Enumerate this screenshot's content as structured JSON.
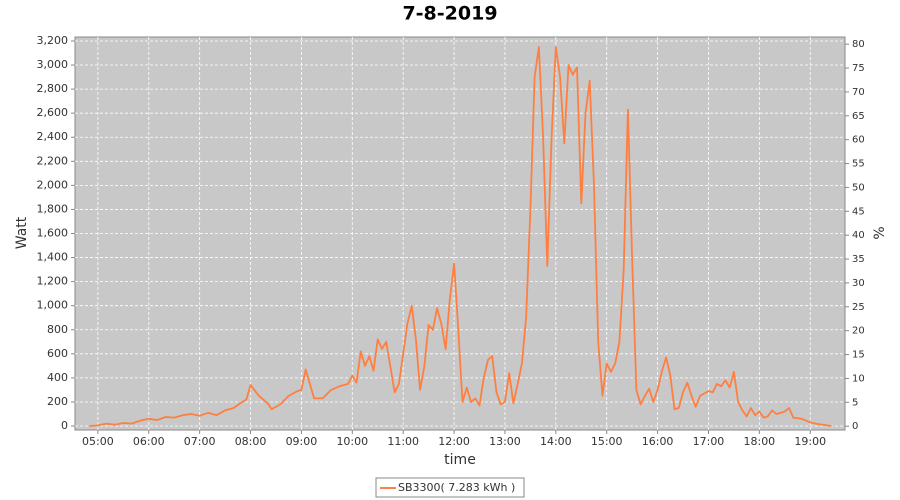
{
  "chart_data": {
    "type": "line",
    "title": "7-8-2019",
    "xlabel": "time",
    "ylabel": "Watt",
    "y2label": "%",
    "x": [
      "04:50",
      "05:00",
      "05:10",
      "05:20",
      "05:30",
      "05:40",
      "05:50",
      "06:00",
      "06:10",
      "06:20",
      "06:30",
      "06:40",
      "06:50",
      "07:00",
      "07:10",
      "07:20",
      "07:30",
      "07:40",
      "07:50",
      "07:55",
      "08:00",
      "08:10",
      "08:20",
      "08:25",
      "08:35",
      "08:45",
      "08:55",
      "09:00",
      "09:05",
      "09:15",
      "09:25",
      "09:35",
      "09:45",
      "09:55",
      "10:00",
      "10:05",
      "10:10",
      "10:15",
      "10:20",
      "10:25",
      "10:30",
      "10:35",
      "10:40",
      "10:50",
      "10:55",
      "11:05",
      "11:10",
      "11:15",
      "11:20",
      "11:25",
      "11:30",
      "11:35",
      "11:40",
      "11:45",
      "11:50",
      "11:55",
      "12:00",
      "12:05",
      "12:10",
      "12:15",
      "12:20",
      "12:25",
      "12:30",
      "12:35",
      "12:40",
      "12:45",
      "12:50",
      "12:55",
      "13:00",
      "13:05",
      "13:10",
      "13:15",
      "13:20",
      "13:25",
      "13:30",
      "13:35",
      "13:40",
      "13:45",
      "13:50",
      "13:55",
      "14:00",
      "14:05",
      "14:10",
      "14:15",
      "14:20",
      "14:25",
      "14:30",
      "14:35",
      "14:40",
      "14:45",
      "14:50",
      "14:55",
      "15:00",
      "15:05",
      "15:10",
      "15:15",
      "15:20",
      "15:25",
      "15:30",
      "15:35",
      "15:40",
      "15:45",
      "15:50",
      "15:55",
      "16:00",
      "16:05",
      "16:10",
      "16:15",
      "16:20",
      "16:25",
      "16:30",
      "16:35",
      "16:40",
      "16:45",
      "16:50",
      "16:55",
      "17:00",
      "17:05",
      "17:10",
      "17:15",
      "17:20",
      "17:25",
      "17:30",
      "17:35",
      "17:40",
      "17:45",
      "17:50",
      "17:55",
      "18:00",
      "18:05",
      "18:10",
      "18:15",
      "18:20",
      "18:30",
      "18:35",
      "18:40",
      "18:50",
      "19:00",
      "19:10",
      "19:20",
      "19:25"
    ],
    "series": [
      {
        "name": "SB3300( 7.283 kWh )",
        "color": "#ff7f40",
        "values": [
          0,
          5,
          20,
          10,
          25,
          20,
          45,
          60,
          50,
          75,
          70,
          90,
          100,
          85,
          110,
          90,
          130,
          150,
          200,
          220,
          340,
          250,
          190,
          140,
          180,
          250,
          290,
          300,
          470,
          230,
          230,
          300,
          330,
          350,
          420,
          360,
          620,
          500,
          580,
          460,
          720,
          640,
          700,
          280,
          350,
          850,
          1000,
          720,
          300,
          500,
          840,
          800,
          980,
          850,
          640,
          1050,
          1350,
          800,
          200,
          320,
          200,
          230,
          170,
          400,
          550,
          580,
          280,
          180,
          200,
          440,
          190,
          350,
          520,
          900,
          1800,
          2900,
          3150,
          2400,
          1330,
          2400,
          3150,
          2900,
          2350,
          3000,
          2920,
          2980,
          1850,
          2600,
          2870,
          2000,
          700,
          250,
          520,
          450,
          520,
          700,
          1300,
          2630,
          1400,
          300,
          180,
          250,
          310,
          200,
          300,
          450,
          570,
          420,
          140,
          150,
          280,
          360,
          250,
          160,
          250,
          270,
          290,
          280,
          350,
          330,
          380,
          320,
          450,
          200,
          130,
          80,
          150,
          90,
          120,
          70,
          80,
          130,
          100,
          120,
          150,
          70,
          60,
          30,
          15,
          5,
          0
        ]
      }
    ],
    "xlim": [
      "04:33",
      "19:41"
    ],
    "xticks": [
      "05:00",
      "06:00",
      "07:00",
      "08:00",
      "09:00",
      "10:00",
      "11:00",
      "12:00",
      "13:00",
      "14:00",
      "15:00",
      "16:00",
      "17:00",
      "18:00",
      "19:00"
    ],
    "ylim": [
      -33,
      3233
    ],
    "yticks": [
      0,
      200,
      400,
      600,
      800,
      {
        "value": 1000,
        "label": "1,000"
      },
      {
        "value": 1200,
        "label": "1,200"
      },
      {
        "value": 1400,
        "label": "1,400"
      },
      {
        "value": 1600,
        "label": "1,600"
      },
      {
        "value": 1800,
        "label": "1,800"
      },
      {
        "value": 2000,
        "label": "2,000"
      },
      {
        "value": 2200,
        "label": "2,200"
      },
      {
        "value": 2400,
        "label": "2,400"
      },
      {
        "value": 2600,
        "label": "2,600"
      },
      {
        "value": 2800,
        "label": "2,800"
      },
      {
        "value": 3000,
        "label": "3,000"
      },
      {
        "value": 3200,
        "label": "3,200"
      }
    ],
    "y2lim": [
      -0.8,
      81.5
    ],
    "y2ticks": [
      0,
      5,
      10,
      15,
      20,
      25,
      30,
      35,
      40,
      45,
      50,
      55,
      60,
      65,
      70,
      75,
      80
    ],
    "grid": true,
    "legend": "bottom"
  }
}
